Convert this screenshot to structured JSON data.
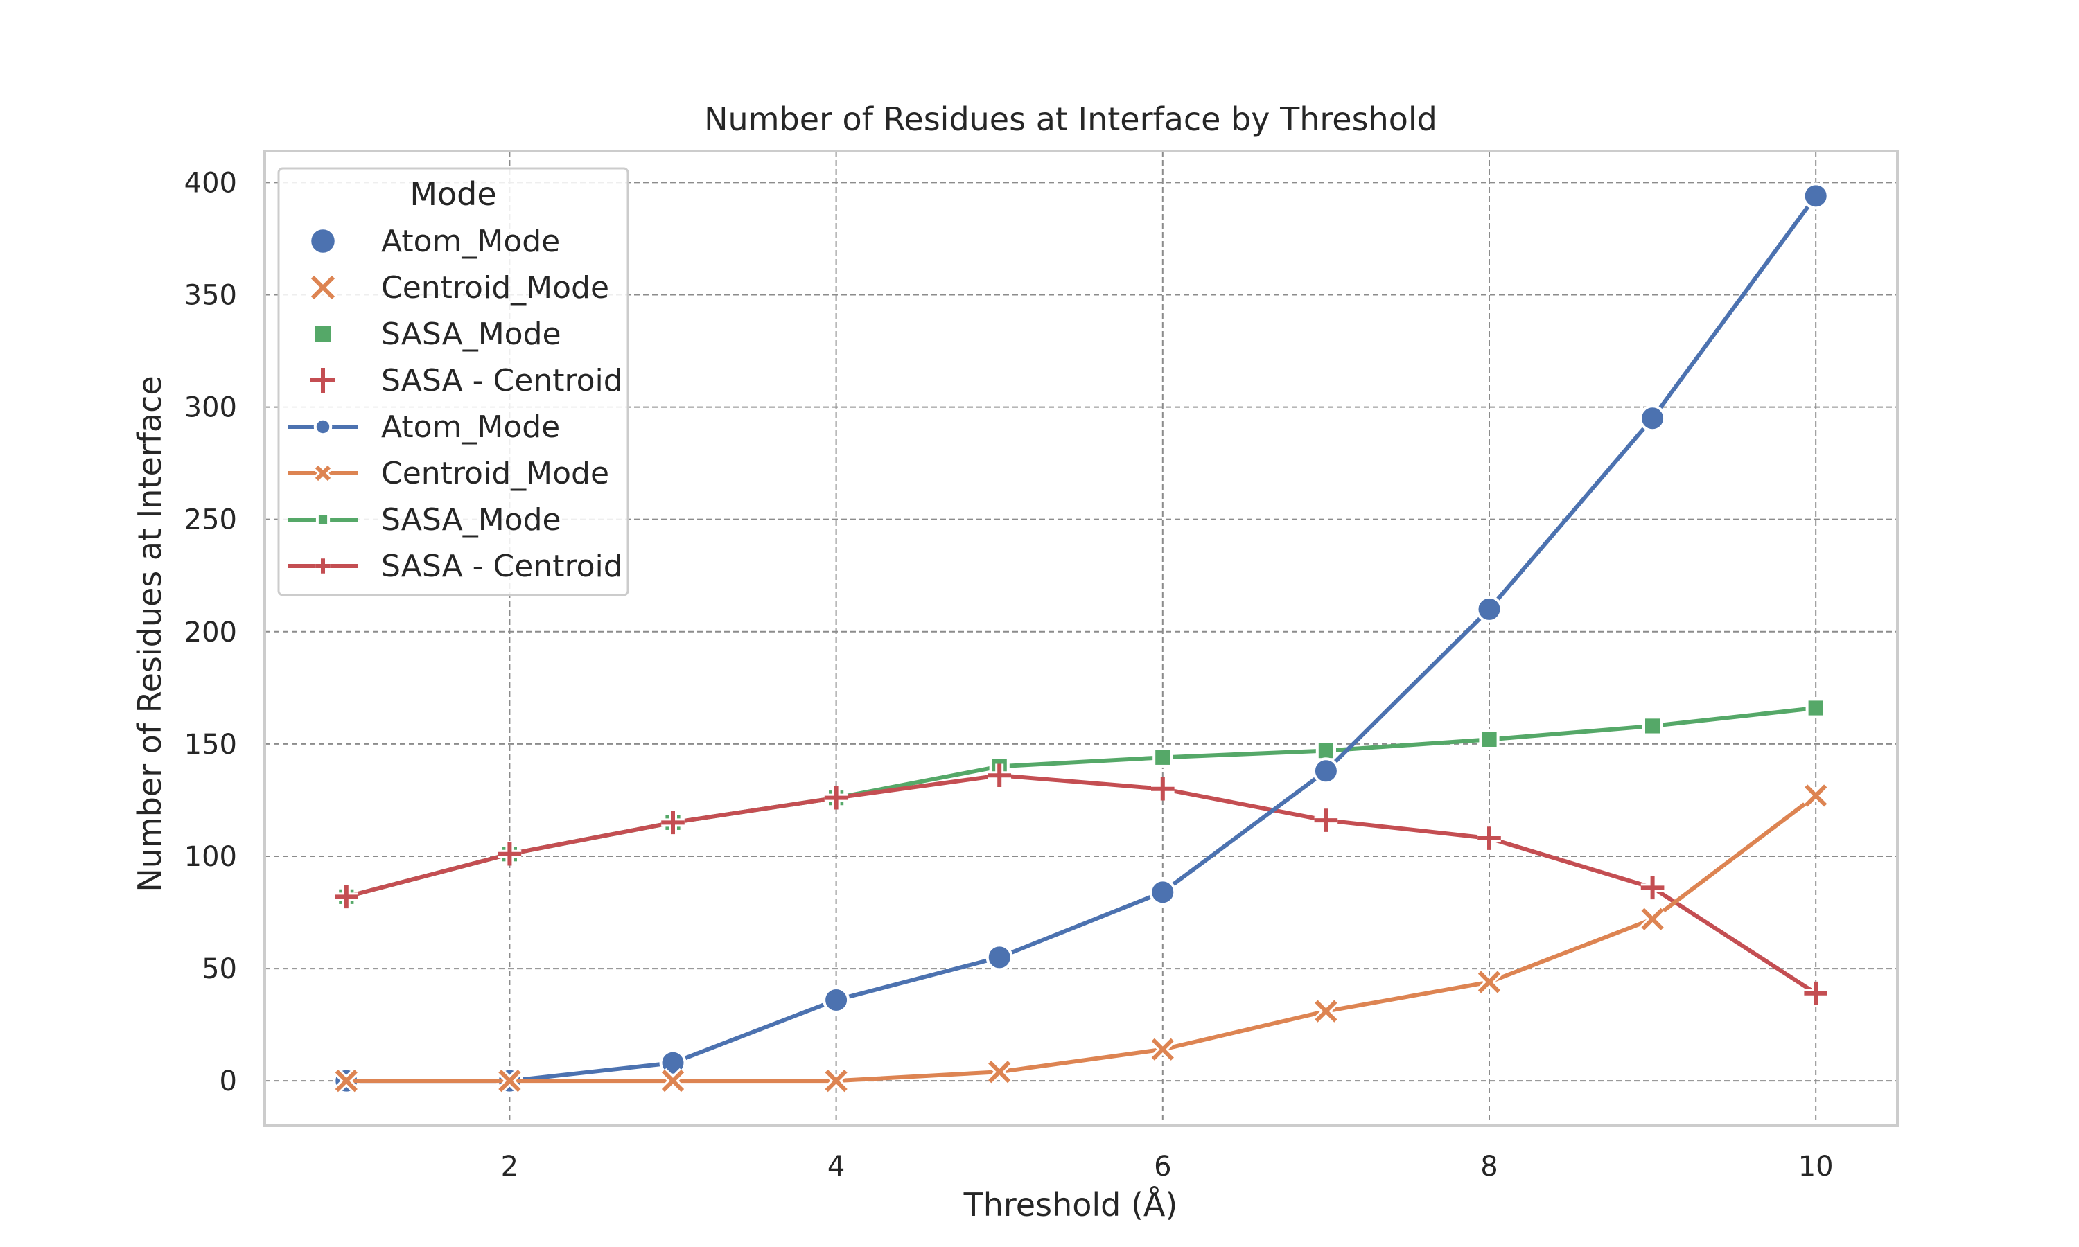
{
  "chart_data": {
    "type": "line",
    "title": "Number of Residues at Interface by Threshold",
    "xlabel": "Threshold (Å)",
    "ylabel": "Number of Residues at Interface",
    "xlim": [
      0.5,
      10.5
    ],
    "ylim": [
      -20,
      414
    ],
    "xticks": [
      2,
      4,
      6,
      8,
      10
    ],
    "yticks": [
      0,
      50,
      100,
      150,
      200,
      250,
      300,
      350,
      400
    ],
    "grid": true,
    "legend": {
      "title": "Mode",
      "placement": "top-left",
      "marker_entries": [
        "Atom_Mode",
        "Centroid_Mode",
        "SASA_Mode",
        "SASA - Centroid"
      ],
      "line_entries": [
        "Atom_Mode",
        "Centroid_Mode",
        "SASA_Mode",
        "SASA - Centroid"
      ]
    },
    "x": [
      1,
      2,
      3,
      4,
      5,
      6,
      7,
      8,
      9,
      10
    ],
    "series": [
      {
        "name": "Atom_Mode",
        "color": "#4c72b0",
        "marker": "circle",
        "values": [
          0,
          0,
          8,
          36,
          55,
          84,
          138,
          210,
          295,
          394
        ]
      },
      {
        "name": "Centroid_Mode",
        "color": "#dd8452",
        "marker": "x",
        "values": [
          0,
          0,
          0,
          0,
          4,
          14,
          31,
          44,
          72,
          127
        ]
      },
      {
        "name": "SASA_Mode",
        "color": "#55a868",
        "marker": "square",
        "values": [
          82,
          101,
          115,
          126,
          140,
          144,
          147,
          152,
          158,
          166
        ]
      },
      {
        "name": "SASA - Centroid",
        "color": "#c44e52",
        "marker": "plus",
        "values": [
          82,
          101,
          115,
          126,
          136,
          130,
          116,
          108,
          86,
          39
        ]
      }
    ]
  }
}
